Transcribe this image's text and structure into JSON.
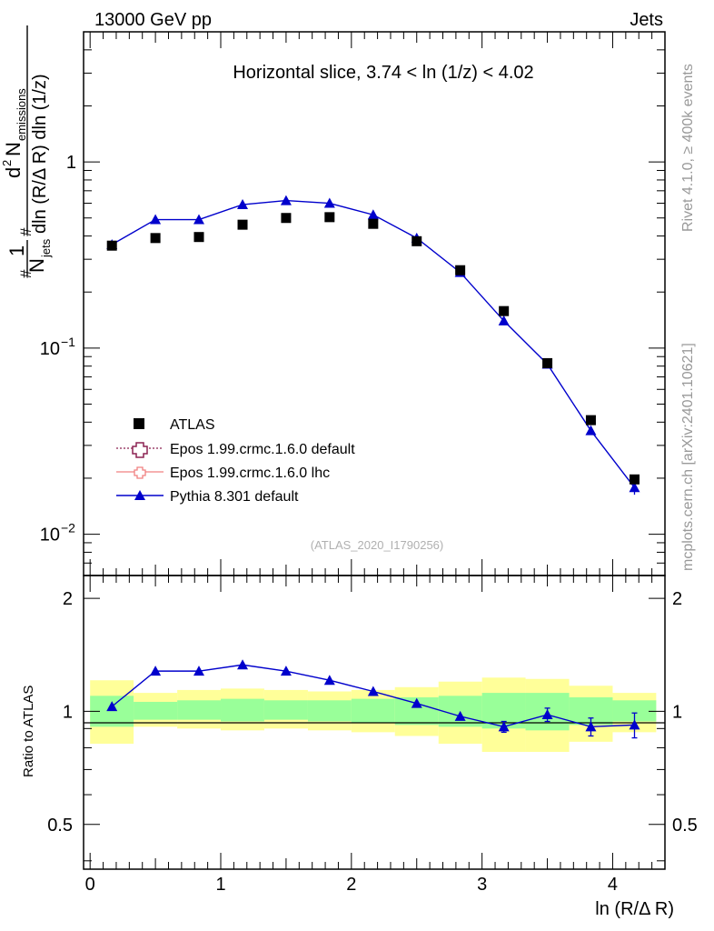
{
  "header": {
    "left": "13000 GeV pp",
    "right": "Jets",
    "side_top": "Rivet 4.1.0, ≥ 400k events",
    "side_bottom": "mcplots.cern.ch [arXiv:2401.10621]"
  },
  "chart_data": [
    {
      "type": "scatter",
      "title": "Horizontal slice, 3.74 < ln (1/z) < 4.02",
      "watermark": "(ATLAS_2020_I1790256)",
      "xlabel": "ln (R/Δ R)",
      "ylabel": "1/N_jets d²N_emissions / (dln (R/Δ R) dln (1/z))",
      "ylabel_parts": {
        "one": "1",
        "n_jets": "N",
        "jets_sub": "jets",
        "d2": "d",
        "sup2": "2",
        "n_em": "N",
        "em_sub": "emissions",
        "denom": "dln (R/Δ R) dln (1/z)",
        "hash": "#"
      },
      "xlim": [
        -0.05,
        4.4
      ],
      "ylim": [
        0.006,
        5.0
      ],
      "yscale": "log",
      "xticks": [
        "0",
        "1",
        "2",
        "3",
        "4"
      ],
      "yticks": [
        {
          "base": "10",
          "exp": "−2"
        },
        {
          "base": "10",
          "exp": "−1"
        },
        {
          "base": "1",
          "exp": ""
        }
      ],
      "x": [
        0.167,
        0.5,
        0.833,
        1.167,
        1.5,
        1.833,
        2.167,
        2.5,
        2.833,
        3.167,
        3.5,
        3.833,
        4.167
      ],
      "series": [
        {
          "name": "ATLAS",
          "marker": "square",
          "color": "#000000",
          "values": [
            0.355,
            0.39,
            0.395,
            0.46,
            0.5,
            0.505,
            0.465,
            0.375,
            0.262,
            0.158,
            0.083,
            0.041,
            0.0197
          ]
        },
        {
          "name": "Epos 1.99.crmc.1.6.0 default",
          "marker": "open-cross",
          "color": "#8b2252",
          "values": []
        },
        {
          "name": "Epos 1.99.crmc.1.6.0 lhc",
          "marker": "open-cross",
          "color": "#f08080",
          "values": []
        },
        {
          "name": "Pythia 8.301 default",
          "marker": "triangle",
          "color": "#0000cc",
          "values": [
            0.36,
            0.49,
            0.49,
            0.59,
            0.62,
            0.6,
            0.52,
            0.39,
            0.255,
            0.14,
            0.082,
            0.036,
            0.0178
          ],
          "errors": [
            0,
            0,
            0,
            0,
            0,
            0,
            0,
            0,
            0,
            0,
            0,
            0,
            0.0015
          ]
        }
      ]
    },
    {
      "type": "line",
      "ylabel": "Ratio to ATLAS",
      "xlim": [
        -0.05,
        4.4
      ],
      "ylim": [
        0.38,
        2.3
      ],
      "yscale": "log",
      "yticks": [
        "0.5",
        "1",
        "2"
      ],
      "bin_edges": [
        0.0,
        0.333,
        0.667,
        1.0,
        1.333,
        1.667,
        2.0,
        2.333,
        2.667,
        3.0,
        3.333,
        3.667,
        4.0,
        4.333
      ],
      "band_outer": {
        "color": "#ffff99",
        "low": [
          0.82,
          0.91,
          0.9,
          0.89,
          0.9,
          0.89,
          0.88,
          0.86,
          0.82,
          0.78,
          0.78,
          0.83,
          0.88
        ],
        "high": [
          1.21,
          1.12,
          1.14,
          1.15,
          1.14,
          1.13,
          1.14,
          1.16,
          1.2,
          1.23,
          1.22,
          1.17,
          1.12
        ]
      },
      "band_inner": {
        "color": "#99ff99",
        "low": [
          0.91,
          0.95,
          0.95,
          0.94,
          0.95,
          0.94,
          0.93,
          0.92,
          0.91,
          0.9,
          0.89,
          0.92,
          0.94
        ],
        "high": [
          1.1,
          1.06,
          1.07,
          1.08,
          1.07,
          1.07,
          1.08,
          1.09,
          1.1,
          1.12,
          1.12,
          1.09,
          1.07
        ]
      },
      "series": [
        {
          "name": "Pythia 8.301 default",
          "color": "#0000cc",
          "values": [
            1.03,
            1.28,
            1.28,
            1.33,
            1.28,
            1.21,
            1.13,
            1.05,
            0.97,
            0.91,
            0.98,
            0.91,
            0.92
          ],
          "errors": [
            0,
            0,
            0,
            0,
            0,
            0,
            0,
            0,
            0,
            0.03,
            0.04,
            0.05,
            0.07
          ]
        }
      ]
    }
  ]
}
